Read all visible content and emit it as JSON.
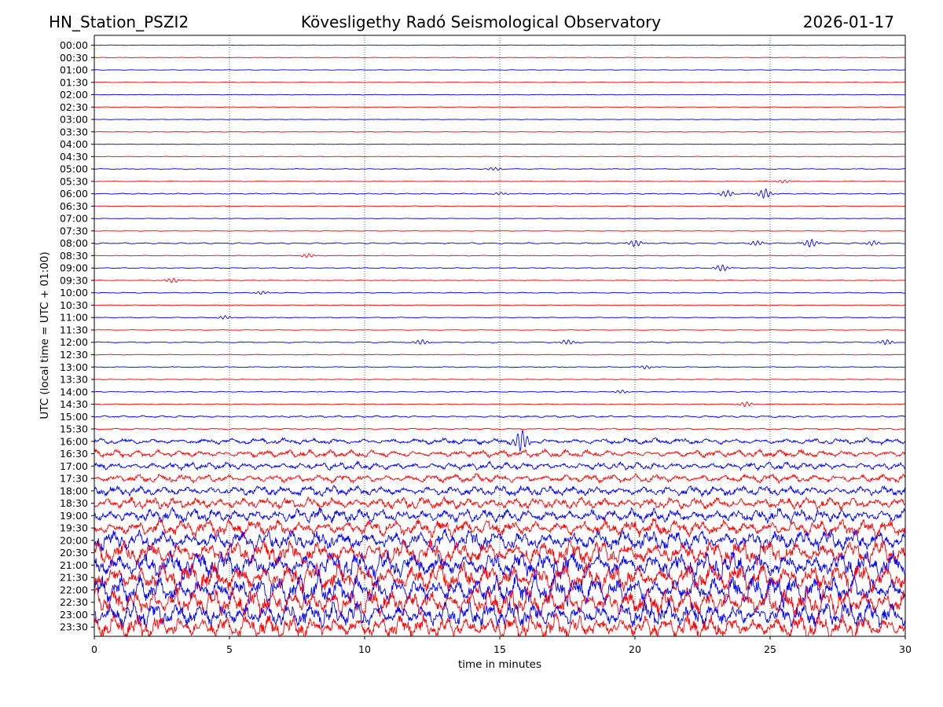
{
  "chart_data": {
    "type": "line",
    "title_left": "HN_Station_PSZI2",
    "title_center": "Kövesligethy Radó Seismological Observatory",
    "title_right": "2026-01-17",
    "xlabel": "time in minutes",
    "ylabel": "UTC (local time = UTC + 01:00)",
    "xlim": [
      0,
      30
    ],
    "x_ticks": [
      0,
      5,
      10,
      15,
      20,
      25,
      30
    ],
    "x_tick_labels": [
      "0",
      "5",
      "10",
      "15",
      "20",
      "25",
      "30"
    ],
    "vertical_grid": true,
    "grid_style": "dotted",
    "y_tick_labels": [
      "00:00",
      "00:30",
      "01:00",
      "01:30",
      "02:00",
      "02:30",
      "03:00",
      "03:30",
      "04:00",
      "04:30",
      "05:00",
      "05:30",
      "06:00",
      "06:30",
      "07:00",
      "07:30",
      "08:00",
      "08:30",
      "09:00",
      "09:30",
      "10:00",
      "10:30",
      "11:00",
      "11:30",
      "12:00",
      "12:30",
      "13:00",
      "13:30",
      "14:00",
      "14:30",
      "15:00",
      "15:30",
      "16:00",
      "16:30",
      "17:00",
      "17:30",
      "18:00",
      "18:30",
      "19:00",
      "19:30",
      "20:00",
      "20:30",
      "21:00",
      "21:30",
      "22:00",
      "22:30",
      "23:00",
      "23:30"
    ],
    "trace_colors": [
      "#0000ff",
      "#ff0000"
    ],
    "trace_amplitude_levels": [
      0.3,
      0.3,
      0.3,
      0.3,
      0.35,
      0.3,
      0.3,
      0.3,
      0.3,
      0.35,
      0.5,
      0.35,
      0.6,
      0.35,
      0.3,
      0.3,
      0.7,
      0.4,
      0.5,
      0.4,
      0.5,
      0.4,
      0.45,
      0.35,
      0.6,
      0.4,
      0.5,
      0.4,
      0.5,
      0.5,
      1.2,
      0.8,
      3.5,
      4.5,
      4.5,
      5,
      6,
      7,
      8,
      10,
      12,
      14,
      16,
      17,
      17,
      16,
      15,
      14
    ],
    "bursts": [
      {
        "row": 10,
        "minute": 14.8,
        "amp": 2
      },
      {
        "row": 11,
        "minute": 25.5,
        "amp": 2
      },
      {
        "row": 12,
        "minute": 15.0,
        "amp": 1.5
      },
      {
        "row": 12,
        "minute": 23.4,
        "amp": 4
      },
      {
        "row": 12,
        "minute": 24.8,
        "amp": 6
      },
      {
        "row": 16,
        "minute": 20.0,
        "amp": 4
      },
      {
        "row": 16,
        "minute": 24.5,
        "amp": 3
      },
      {
        "row": 16,
        "minute": 26.5,
        "amp": 5
      },
      {
        "row": 16,
        "minute": 28.8,
        "amp": 3
      },
      {
        "row": 17,
        "minute": 7.9,
        "amp": 2.5
      },
      {
        "row": 18,
        "minute": 23.2,
        "amp": 4
      },
      {
        "row": 19,
        "minute": 2.9,
        "amp": 3
      },
      {
        "row": 20,
        "minute": 6.2,
        "amp": 2
      },
      {
        "row": 22,
        "minute": 4.8,
        "amp": 2
      },
      {
        "row": 24,
        "minute": 12.1,
        "amp": 3
      },
      {
        "row": 24,
        "minute": 17.5,
        "amp": 3
      },
      {
        "row": 24,
        "minute": 29.3,
        "amp": 3
      },
      {
        "row": 26,
        "minute": 20.4,
        "amp": 2
      },
      {
        "row": 28,
        "minute": 19.5,
        "amp": 2
      },
      {
        "row": 29,
        "minute": 24.1,
        "amp": 3
      },
      {
        "row": 32,
        "minute": 15.8,
        "amp": 14
      }
    ]
  }
}
